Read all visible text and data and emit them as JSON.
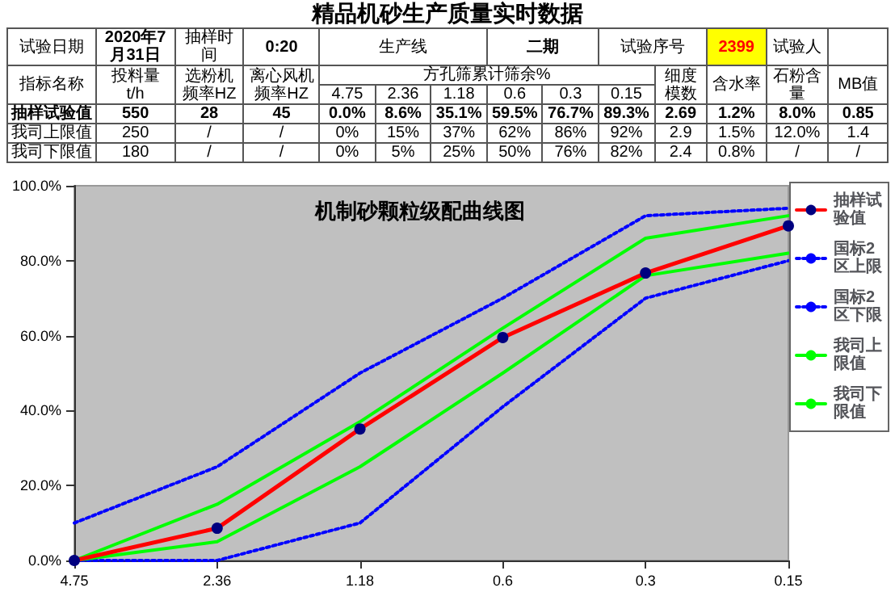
{
  "chart_data": [
    {
      "type": "other",
      "title": "精品机砂生产质量实时数据",
      "annotations": [
        "试验日期",
        "2020年7月31日",
        "抽样时间",
        "0:20",
        "生产线",
        "二期",
        "试验序号",
        "2399",
        "试验人",
        "指标名称",
        "投料量\nt/h",
        "选粉机频率HZ",
        "离心风机频率HZ",
        "方孔筛累计筛余%",
        "细度模数",
        "含水率",
        "石粉含量",
        "MB值",
        "4.75",
        "2.36",
        "1.18",
        "0.6",
        "0.3",
        "0.15",
        "抽样试验值",
        "550",
        "28",
        "45",
        "0.0%",
        "8.6%",
        "35.1%",
        "59.5%",
        "76.7%",
        "89.3%",
        "2.69",
        "1.2%",
        "8.0%",
        "0.85",
        "我司上限值",
        "250",
        "/",
        "/",
        "0%",
        "15%",
        "37%",
        "62%",
        "86%",
        "92%",
        "2.9",
        "1.5%",
        "12.0%",
        "1.4",
        "我司下限值",
        "180",
        "/",
        "/",
        "0%",
        "5%",
        "25%",
        "50%",
        "76%",
        "82%",
        "2.4",
        "0.8%",
        "/",
        "/"
      ]
    },
    {
      "type": "line",
      "title": "机制砂颗粒级配曲线图",
      "categories": [
        "4.75",
        "2.36",
        "1.18",
        "0.6",
        "0.3",
        "0.15"
      ],
      "series": [
        {
          "name": "抽样试验值",
          "color": "#ff0000",
          "marker": "circle",
          "line_style": "solid",
          "values": [
            0,
            8.6,
            35.1,
            59.5,
            76.7,
            89.3
          ]
        },
        {
          "name": "国标2区上限",
          "color": "#0000ff",
          "marker": "none",
          "line_style": "dotted",
          "values": [
            10,
            25,
            50,
            70,
            92,
            94
          ]
        },
        {
          "name": "国标2区下限",
          "color": "#0000ff",
          "marker": "none",
          "line_style": "dotted",
          "values": [
            0,
            0,
            10,
            41,
            70,
            80
          ]
        },
        {
          "name": "我司上限值",
          "color": "#00ff00",
          "marker": "none",
          "line_style": "solid",
          "values": [
            0,
            15,
            37,
            62,
            86,
            92
          ]
        },
        {
          "name": "我司下限值",
          "color": "#00ff00",
          "marker": "none",
          "line_style": "solid",
          "values": [
            0,
            5,
            25,
            50,
            76,
            82
          ]
        }
      ],
      "ylim": [
        0,
        100
      ],
      "yticks": [
        {
          "value": 0,
          "label": "0.0%"
        },
        {
          "value": 20,
          "label": "20.0%"
        },
        {
          "value": 40,
          "label": "40.0%"
        },
        {
          "value": 60,
          "label": "60.0%"
        },
        {
          "value": 80,
          "label": "80.0%"
        },
        {
          "value": 100,
          "label": "100.0%"
        }
      ],
      "grid": false,
      "legend": "right"
    }
  ]
}
